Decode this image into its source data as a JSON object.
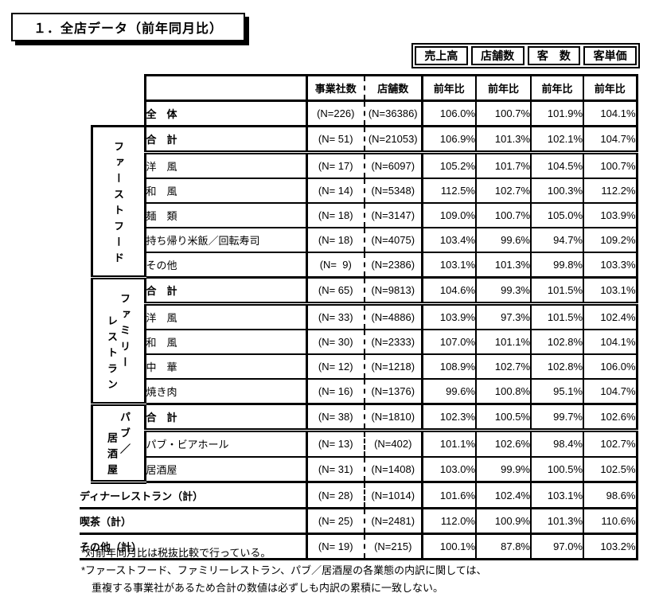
{
  "title": "１．全店データ（前年同月比）",
  "metric_badges": [
    "売上高",
    "店舗数",
    "客　数",
    "客単価"
  ],
  "table": {
    "header": [
      "事業社数",
      "店舗数",
      "前年比",
      "前年比",
      "前年比",
      "前年比"
    ],
    "groups": [
      {
        "start": 1,
        "span": 6,
        "columns": [
          "ファーストフード"
        ],
        "offsets": [
          0
        ]
      },
      {
        "start": 7,
        "span": 5,
        "columns": [
          "ファミリー",
          "レストラン"
        ],
        "offsets": [
          0,
          28
        ]
      },
      {
        "start": 12,
        "span": 3,
        "columns": [
          "パブ／",
          "居酒屋"
        ],
        "offsets": [
          0,
          26
        ]
      }
    ],
    "rows": [
      {
        "type": "plain",
        "label": "全　体",
        "bold": true,
        "n_biz": "(N=226)",
        "n_store": "(N=36386)",
        "values": [
          "106.0%",
          "100.7%",
          "101.9%",
          "104.1%"
        ],
        "border": "bt"
      },
      {
        "type": "grouped",
        "label": "合　計",
        "bold": true,
        "n_biz": "(N= 51)",
        "n_store": "(N=21053)",
        "values": [
          "106.9%",
          "101.3%",
          "102.1%",
          "104.7%"
        ],
        "border": "bd"
      },
      {
        "type": "grouped",
        "label": "洋　風",
        "bold": false,
        "n_biz": "(N= 17)",
        "n_store": "(N=6097)",
        "values": [
          "105.2%",
          "101.7%",
          "104.5%",
          "100.7%"
        ],
        "border": ""
      },
      {
        "type": "grouped",
        "label": "和　風",
        "bold": false,
        "n_biz": "(N= 14)",
        "n_store": "(N=5348)",
        "values": [
          "112.5%",
          "102.7%",
          "100.3%",
          "112.2%"
        ],
        "border": ""
      },
      {
        "type": "grouped",
        "label": "麺　類",
        "bold": false,
        "n_biz": "(N= 18)",
        "n_store": "(N=3147)",
        "values": [
          "109.0%",
          "100.7%",
          "105.0%",
          "103.9%"
        ],
        "border": ""
      },
      {
        "type": "grouped",
        "label": "持ち帰り米飯／回転寿司",
        "bold": false,
        "n_biz": "(N= 18)",
        "n_store": "(N=4075)",
        "values": [
          "103.4%",
          "99.6%",
          "94.7%",
          "109.2%"
        ],
        "border": ""
      },
      {
        "type": "grouped",
        "label": "その他",
        "bold": false,
        "n_biz": "(N=  9)",
        "n_store": "(N=2386)",
        "values": [
          "103.1%",
          "101.3%",
          "99.8%",
          "103.3%"
        ],
        "border": "bt"
      },
      {
        "type": "grouped",
        "label": "合　計",
        "bold": true,
        "n_biz": "(N= 65)",
        "n_store": "(N=9813)",
        "values": [
          "104.6%",
          "99.3%",
          "101.5%",
          "103.1%"
        ],
        "border": "bd"
      },
      {
        "type": "grouped",
        "label": "洋　風",
        "bold": false,
        "n_biz": "(N= 33)",
        "n_store": "(N=4886)",
        "values": [
          "103.9%",
          "97.3%",
          "101.5%",
          "102.4%"
        ],
        "border": ""
      },
      {
        "type": "grouped",
        "label": "和　風",
        "bold": false,
        "n_biz": "(N= 30)",
        "n_store": "(N=2333)",
        "values": [
          "107.0%",
          "101.1%",
          "102.8%",
          "104.1%"
        ],
        "border": ""
      },
      {
        "type": "grouped",
        "label": "中　華",
        "bold": false,
        "n_biz": "(N= 12)",
        "n_store": "(N=1218)",
        "values": [
          "108.9%",
          "102.7%",
          "102.8%",
          "106.0%"
        ],
        "border": ""
      },
      {
        "type": "grouped",
        "label": "焼き肉",
        "bold": false,
        "n_biz": "(N= 16)",
        "n_store": "(N=1376)",
        "values": [
          "99.6%",
          "100.8%",
          "95.1%",
          "104.7%"
        ],
        "border": "bt"
      },
      {
        "type": "grouped",
        "label": "合　計",
        "bold": true,
        "n_biz": "(N= 38)",
        "n_store": "(N=1810)",
        "values": [
          "102.3%",
          "100.5%",
          "99.7%",
          "102.6%"
        ],
        "border": "bd"
      },
      {
        "type": "grouped",
        "label": "パブ・ビアホール",
        "bold": false,
        "n_biz": "(N= 13)",
        "n_store": "(N=402)",
        "values": [
          "101.1%",
          "102.6%",
          "98.4%",
          "102.7%"
        ],
        "border": ""
      },
      {
        "type": "grouped",
        "label": "居酒屋",
        "bold": false,
        "n_biz": "(N= 31)",
        "n_store": "(N=1408)",
        "values": [
          "103.0%",
          "99.9%",
          "100.5%",
          "102.5%"
        ],
        "border": "bt"
      },
      {
        "type": "total",
        "label": "ディナーレストラン（計）",
        "bold": true,
        "n_biz": "(N= 28)",
        "n_store": "(N=1014)",
        "values": [
          "101.6%",
          "102.4%",
          "103.1%",
          "98.6%"
        ],
        "border": "bt"
      },
      {
        "type": "total",
        "label": "喫茶（計）",
        "bold": true,
        "n_biz": "(N= 25)",
        "n_store": "(N=2481)",
        "values": [
          "112.0%",
          "100.9%",
          "101.3%",
          "110.6%"
        ],
        "border": "bt"
      },
      {
        "type": "total",
        "label": "その他（計）",
        "bold": true,
        "n_biz": "(N= 19)",
        "n_store": "(N=215)",
        "values": [
          "100.1%",
          "87.8%",
          "97.0%",
          "103.2%"
        ],
        "border": "bt"
      }
    ]
  },
  "footnotes": [
    "*対前年同月比は税抜比較で行っている。",
    "*ファーストフード、ファミリーレストラン、パブ／居酒屋の各業態の内訳に関しては、",
    "　重複する事業社があるため合計の数値は必ずしも内訳の累積に一致しない。"
  ]
}
